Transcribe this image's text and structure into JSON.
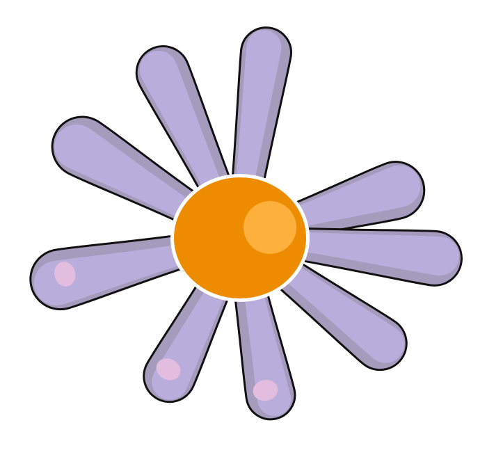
{
  "illustration": {
    "subject": "daisy-flower",
    "petal_count": 9,
    "colors": {
      "background": "#ffffff",
      "petal_outer": "#a59bbd",
      "petal_inner": "#b9addb",
      "petal_outline": "#111111",
      "petal_spot": "#e3bde0",
      "center": "#ee8c00",
      "center_highlight": "#fdb03c"
    }
  }
}
